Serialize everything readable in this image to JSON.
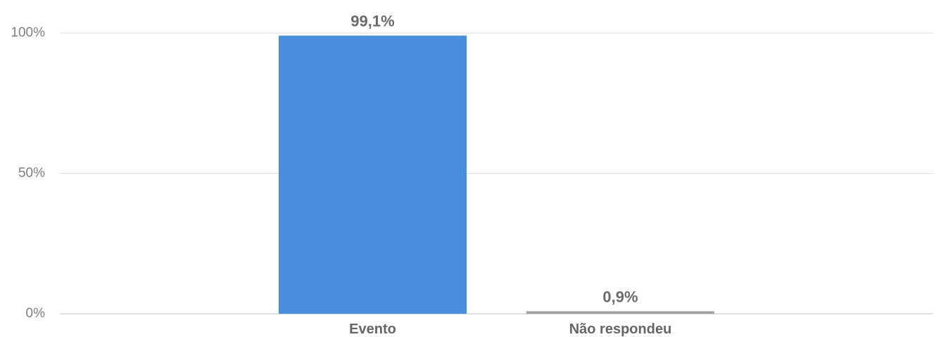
{
  "chart_data": {
    "type": "bar",
    "categories": [
      "Evento",
      "Não respondeu"
    ],
    "values": [
      99.1,
      0.9
    ],
    "data_labels": [
      "99,1%",
      "0,9%"
    ],
    "bar_colors": [
      "#4a8ddc",
      "#a0a0a0"
    ],
    "y_ticks": [
      {
        "value": 0,
        "label": "0%"
      },
      {
        "value": 50,
        "label": "50%"
      },
      {
        "value": 100,
        "label": "100%"
      }
    ],
    "ylim": [
      0,
      100
    ],
    "grid": true,
    "legend": "none",
    "title": "",
    "xlabel": "",
    "ylabel": ""
  }
}
